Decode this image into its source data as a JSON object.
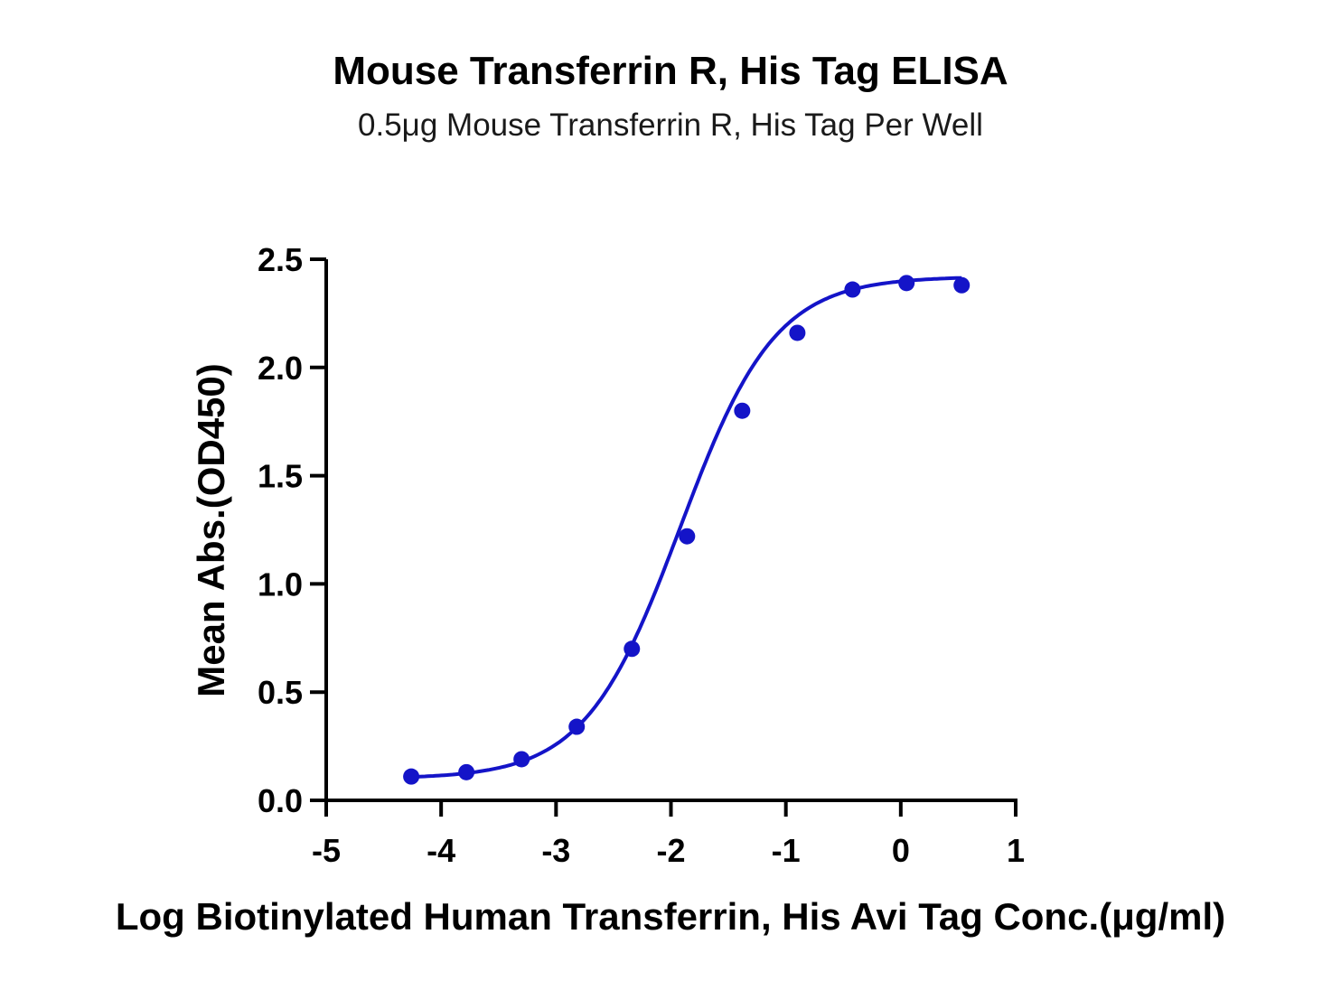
{
  "chart_data": {
    "type": "scatter",
    "title": "Mouse Transferrin R, His Tag ELISA",
    "subtitle": "0.5μg Mouse Transferrin R, His Tag Per Well",
    "xlabel": "Log Biotinylated Human Transferrin, His Avi Tag Conc.(μg/ml)",
    "ylabel": "Mean Abs.(OD450)",
    "xlim": [
      -5,
      1
    ],
    "ylim": [
      0,
      2.5
    ],
    "x_ticks": [
      "-5",
      "-4",
      "-3",
      "-2",
      "-1",
      "0",
      "1"
    ],
    "y_ticks": [
      "0.0",
      "0.5",
      "1.0",
      "1.5",
      "2.0",
      "2.5"
    ],
    "grid": false,
    "color": "#1414c8",
    "series": [
      {
        "x": [
          -4.26,
          -3.78,
          -3.3,
          -2.82,
          -2.34,
          -1.86,
          -1.38,
          -0.9,
          -0.42,
          0.05,
          0.53
        ],
        "y": [
          0.11,
          0.13,
          0.19,
          0.34,
          0.7,
          1.22,
          1.8,
          2.16,
          2.36,
          2.39,
          2.38
        ]
      }
    ],
    "fit": {
      "model": "4PL",
      "bottom": 0.1,
      "top": 2.42,
      "logEC50": -1.92,
      "hill": 1.05
    }
  }
}
